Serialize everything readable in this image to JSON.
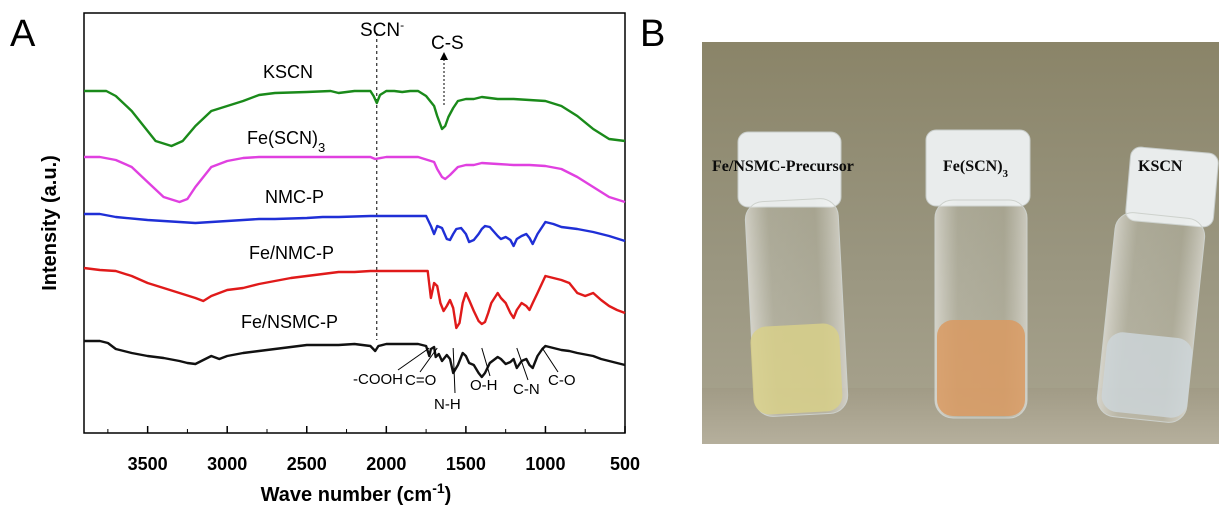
{
  "chart_data": {
    "type": "line",
    "panel_a": "A",
    "panel_b": "B",
    "xlabel": "Wave number (cm",
    "xlabel_sup": "-1",
    "ylabel": "Intensity (a.u.)",
    "xlim": [
      3900,
      500
    ],
    "x_ticks": [
      "3500",
      "3000",
      "2500",
      "2000",
      "1500",
      "1000",
      "500"
    ],
    "x_tick_values": [
      3500,
      3000,
      2500,
      2000,
      1500,
      1000,
      500
    ],
    "marker_line": {
      "label": "SCN",
      "label_sup": "-",
      "x": 2060
    },
    "top_annotation": "C-S",
    "series": [
      {
        "name": "KSCN",
        "color": "#1a8a1a",
        "x": [
          3900,
          3760,
          3700,
          3600,
          3450,
          3350,
          3280,
          3200,
          3100,
          3000,
          2900,
          2800,
          2700,
          2500,
          2350,
          2300,
          2200,
          2100,
          2080,
          2060,
          2040,
          2000,
          1950,
          1900,
          1850,
          1800,
          1750,
          1700,
          1680,
          1650,
          1630,
          1610,
          1580,
          1550,
          1500,
          1450,
          1400,
          1300,
          1200,
          1100,
          1000,
          900,
          800,
          700,
          600,
          500
        ],
        "y": [
          0,
          0,
          -0.5,
          -2,
          -5,
          -5.5,
          -5,
          -3.5,
          -2,
          -1.5,
          -1,
          -0.4,
          -0.2,
          -0.1,
          0,
          -0.2,
          0,
          0,
          -0.5,
          -1.2,
          -0.4,
          0,
          0,
          -0.1,
          0,
          0,
          -0.5,
          -1.5,
          -2.5,
          -3.8,
          -3.5,
          -2.6,
          -1.7,
          -1,
          -0.8,
          -0.8,
          -0.6,
          -0.8,
          -0.8,
          -0.9,
          -1,
          -1.5,
          -2.5,
          -3.8,
          -4.8,
          -5
        ]
      },
      {
        "name": "Fe(SCN)",
        "name_sub": "3",
        "color": "#e040e0",
        "x": [
          3900,
          3800,
          3700,
          3600,
          3500,
          3400,
          3300,
          3250,
          3200,
          3100,
          3000,
          2900,
          2800,
          2700,
          2500,
          2300,
          2100,
          2070,
          2000,
          1900,
          1800,
          1700,
          1680,
          1650,
          1630,
          1600,
          1550,
          1500,
          1450,
          1400,
          1300,
          1200,
          1100,
          1000,
          900,
          800,
          700,
          600,
          500
        ],
        "y": [
          0,
          0,
          -0.3,
          -1,
          -2.5,
          -4,
          -4.5,
          -4.2,
          -3,
          -1,
          -0.4,
          -0.1,
          0,
          0,
          0,
          0,
          0,
          -0.2,
          0,
          0,
          0,
          -0.5,
          -1.2,
          -2,
          -2.2,
          -1.8,
          -1,
          -0.8,
          -0.8,
          -0.6,
          -0.7,
          -0.8,
          -0.8,
          -0.9,
          -1.2,
          -2,
          -3,
          -4,
          -4.5
        ]
      },
      {
        "name": "NMC-P",
        "color": "#1f2fd6",
        "x": [
          3900,
          3800,
          3700,
          3500,
          3300,
          3200,
          3100,
          3000,
          2900,
          2800,
          2700,
          2500,
          2400,
          2300,
          2100,
          2000,
          1900,
          1800,
          1750,
          1720,
          1700,
          1680,
          1650,
          1620,
          1600,
          1580,
          1560,
          1530,
          1500,
          1480,
          1450,
          1420,
          1400,
          1380,
          1350,
          1300,
          1280,
          1250,
          1220,
          1200,
          1180,
          1150,
          1120,
          1100,
          1080,
          1050,
          1000,
          950,
          900,
          800,
          700,
          600,
          500
        ],
        "y": [
          0,
          0,
          -0.3,
          -0.6,
          -0.8,
          -0.9,
          -0.8,
          -0.7,
          -0.6,
          -0.5,
          -0.5,
          -0.4,
          -0.3,
          -0.3,
          -0.2,
          -0.2,
          -0.2,
          -0.2,
          -0.2,
          -1.2,
          -2,
          -1.2,
          -1.4,
          -2.5,
          -2.6,
          -2,
          -1.5,
          -1.4,
          -2,
          -2.8,
          -2.6,
          -2,
          -1.5,
          -1.2,
          -1.3,
          -2.2,
          -2.5,
          -2.3,
          -2.6,
          -3.2,
          -2.5,
          -2.2,
          -2,
          -2.4,
          -3,
          -2,
          -0.8,
          -1,
          -1.3,
          -1.5,
          -1.8,
          -2.2,
          -2.7
        ]
      },
      {
        "name": "Fe/NMC-P",
        "color": "#e01a1a",
        "x": [
          3900,
          3800,
          3700,
          3600,
          3500,
          3400,
          3300,
          3200,
          3150,
          3100,
          3000,
          2900,
          2800,
          2700,
          2600,
          2500,
          2400,
          2300,
          2200,
          2100,
          2000,
          1900,
          1800,
          1740,
          1720,
          1700,
          1680,
          1660,
          1640,
          1620,
          1600,
          1580,
          1560,
          1540,
          1520,
          1500,
          1480,
          1450,
          1420,
          1400,
          1380,
          1360,
          1340,
          1300,
          1280,
          1250,
          1220,
          1200,
          1180,
          1150,
          1120,
          1100,
          1080,
          1050,
          1000,
          950,
          900,
          850,
          800,
          750,
          700,
          650,
          600,
          550,
          500
        ],
        "y": [
          0,
          -0.2,
          -0.3,
          -0.8,
          -1.5,
          -2,
          -2.5,
          -3,
          -3.3,
          -2.8,
          -2.2,
          -2,
          -1.6,
          -1.3,
          -1,
          -0.8,
          -0.6,
          -0.4,
          -0.4,
          -0.3,
          -0.3,
          -0.3,
          -0.3,
          -0.3,
          -3,
          -1.5,
          -1.8,
          -3.5,
          -4.3,
          -3.8,
          -3.2,
          -4,
          -6,
          -5.5,
          -3.5,
          -2.5,
          -3.2,
          -4.3,
          -5.3,
          -5.6,
          -5.4,
          -4.5,
          -3.5,
          -2.5,
          -3,
          -3.5,
          -4.5,
          -5,
          -4.2,
          -3.5,
          -3.8,
          -4.2,
          -3.5,
          -2.5,
          -0.8,
          -1,
          -1.2,
          -1.5,
          -2.5,
          -2.8,
          -2.5,
          -3.2,
          -3.8,
          -4.2,
          -4.5
        ]
      },
      {
        "name": "Fe/NSMC-P",
        "color": "#111111",
        "x": [
          3900,
          3800,
          3750,
          3700,
          3600,
          3500,
          3400,
          3300,
          3250,
          3200,
          3150,
          3100,
          3050,
          3000,
          2900,
          2800,
          2700,
          2600,
          2500,
          2400,
          2300,
          2200,
          2100,
          2070,
          2050,
          2000,
          1900,
          1800,
          1750,
          1730,
          1720,
          1700,
          1690,
          1670,
          1650,
          1620,
          1600,
          1580,
          1550,
          1520,
          1500,
          1480,
          1450,
          1420,
          1400,
          1380,
          1350,
          1300,
          1280,
          1250,
          1220,
          1200,
          1180,
          1150,
          1120,
          1100,
          1080,
          1050,
          1020,
          1000,
          950,
          900,
          850,
          800,
          700,
          650,
          600,
          550,
          500
        ],
        "y": [
          0,
          0,
          -0.2,
          -0.8,
          -1.2,
          -1.5,
          -1.7,
          -2,
          -2.2,
          -2.3,
          -1.9,
          -1.5,
          -1.8,
          -1.5,
          -1.2,
          -1,
          -0.8,
          -0.6,
          -0.4,
          -0.4,
          -0.4,
          -0.3,
          -0.5,
          -1,
          -0.5,
          -0.3,
          -0.3,
          -0.3,
          -0.5,
          -1.5,
          -0.8,
          -0.6,
          -1.6,
          -1.3,
          -2,
          -1.4,
          -1.8,
          -3.2,
          -2.4,
          -1.2,
          -1.5,
          -2.2,
          -2.4,
          -3.2,
          -3.6,
          -3.2,
          -2.2,
          -1.6,
          -1.8,
          -2.3,
          -2.1,
          -1.8,
          -2.7,
          -2,
          -1.8,
          -2.4,
          -2.7,
          -1.5,
          -0.8,
          -0.5,
          -0.7,
          -0.9,
          -1,
          -1.2,
          -1.5,
          -1.8,
          -2,
          -2.2,
          -2.4
        ]
      }
    ],
    "band_labels": [
      {
        "text": "-COOH",
        "x": 1720
      },
      {
        "text": "C=O",
        "x": 1650
      },
      {
        "text": "N-H",
        "x": 1580
      },
      {
        "text": "O-H",
        "x": 1400
      },
      {
        "text": "C-N",
        "x": 1180
      },
      {
        "text": "C-O",
        "x": 1020
      }
    ]
  },
  "photo": {
    "labels": [
      "Fe/NSMC-Precursor",
      "Fe(SCN)",
      "KSCN"
    ],
    "label_sub": "3",
    "liquid_colors": [
      "#d8d089",
      "#d99a61",
      "#cdd5d8"
    ]
  }
}
